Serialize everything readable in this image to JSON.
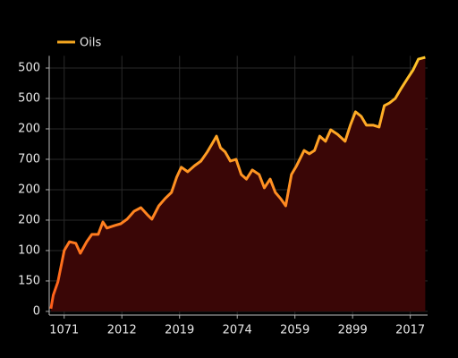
{
  "chart_data": {
    "type": "line",
    "legend": "top-left",
    "grid": true,
    "xlim": [
      -0.26,
      6.3
    ],
    "xticks": [
      {
        "value": 0,
        "label": "1071"
      },
      {
        "value": 1,
        "label": "2012"
      },
      {
        "value": 2,
        "label": "2019"
      },
      {
        "value": 3,
        "label": "2074"
      },
      {
        "value": 4,
        "label": "2059"
      },
      {
        "value": 5,
        "label": "2899"
      },
      {
        "value": 6,
        "label": "2017"
      }
    ],
    "ylim": [
      -0.12,
      8.4
    ],
    "yticks": [
      0,
      {
        "value": 1,
        "label": "150"
      },
      {
        "value": 2,
        "label": "100"
      },
      {
        "value": 3,
        "label": "200"
      },
      {
        "value": 4,
        "label": "200"
      },
      {
        "value": 5,
        "label": "700"
      },
      {
        "value": 6,
        "label": "200"
      },
      {
        "value": 7,
        "label": "500"
      },
      {
        "value": 8,
        "label": "500"
      }
    ],
    "x": [
      -0.23,
      -0.19,
      -0.11,
      -0.03,
      0,
      0.09,
      0.2,
      0.28,
      0.39,
      0.48,
      0.59,
      0.67,
      0.74,
      0.87,
      0.98,
      1.09,
      1.21,
      1.33,
      1.44,
      1.52,
      1.64,
      1.75,
      1.86,
      1.95,
      2.03,
      2.14,
      2.26,
      2.37,
      2.48,
      2.57,
      2.64,
      2.71,
      2.79,
      2.88,
      2.98,
      3.07,
      3.16,
      3.26,
      3.38,
      3.47,
      3.57,
      3.66,
      3.75,
      3.84,
      3.94,
      4.03,
      4.16,
      4.25,
      4.34,
      4.43,
      4.53,
      4.62,
      4.74,
      4.87,
      4.96,
      5.05,
      5.15,
      5.24,
      5.36,
      5.46,
      5.55,
      5.64,
      5.74,
      5.83,
      5.95,
      6.05,
      6.14,
      6.26
    ],
    "series": [
      {
        "name": "Oils",
        "color": "#f2a51f",
        "area_color": "#3a0606",
        "values": [
          0.09,
          0.53,
          0.97,
          1.71,
          2,
          2.29,
          2.24,
          1.91,
          2.29,
          2.53,
          2.53,
          2.94,
          2.74,
          2.82,
          2.88,
          3.03,
          3.29,
          3.41,
          3.18,
          3.03,
          3.47,
          3.71,
          3.91,
          4.41,
          4.74,
          4.59,
          4.79,
          4.94,
          5.24,
          5.53,
          5.76,
          5.38,
          5.24,
          4.94,
          5,
          4.5,
          4.35,
          4.65,
          4.5,
          4.06,
          4.35,
          3.91,
          3.71,
          3.47,
          4.5,
          4.79,
          5.29,
          5.18,
          5.29,
          5.76,
          5.59,
          5.97,
          5.82,
          5.59,
          6.12,
          6.56,
          6.41,
          6.12,
          6.12,
          6.06,
          6.76,
          6.85,
          7,
          7.29,
          7.65,
          7.94,
          8.29,
          8.35
        ]
      }
    ]
  }
}
